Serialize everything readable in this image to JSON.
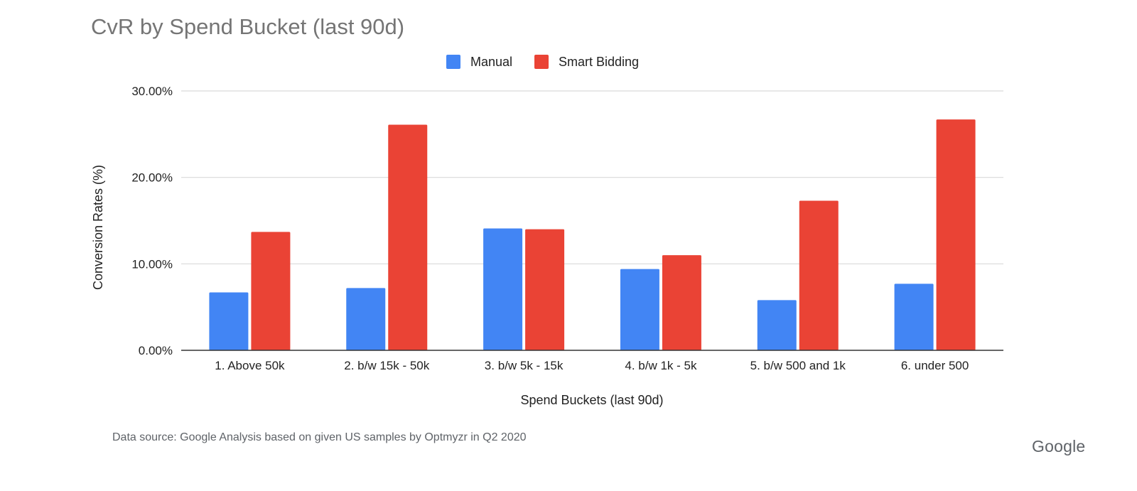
{
  "chart_data": {
    "type": "bar",
    "title": "CvR by Spend Bucket (last 90d)",
    "xlabel": "Spend Buckets (last 90d)",
    "ylabel": "Conversion Rates (%)",
    "categories": [
      "1.   Above 50k",
      "2. b/w 15k - 50k",
      "3. b/w 5k - 15k",
      "4. b/w 1k - 5k",
      "5. b/w 500 and 1k",
      "6. under 500"
    ],
    "series": [
      {
        "name": "Manual",
        "color": "#4285F4",
        "values": [
          6.7,
          7.2,
          14.1,
          9.4,
          5.8,
          7.7
        ]
      },
      {
        "name": "Smart Bidding",
        "color": "#EA4335",
        "values": [
          13.7,
          26.1,
          14.0,
          11.0,
          17.3,
          26.7
        ]
      }
    ],
    "ylim": [
      0,
      30
    ],
    "yticks": [
      {
        "value": 0,
        "label": "0.00%"
      },
      {
        "value": 10,
        "label": "10.00%"
      },
      {
        "value": 20,
        "label": "20.00%"
      },
      {
        "value": 30,
        "label": "30.00%"
      }
    ],
    "grid": true,
    "legend": "top-center"
  },
  "footer": {
    "source": "Data source: Google Analysis based on given US samples by Optmyzr in Q2 2020",
    "brand": "Google"
  }
}
